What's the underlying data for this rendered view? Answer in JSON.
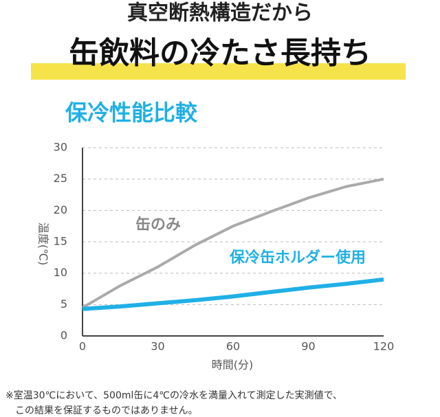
{
  "header": {
    "line1": "真空断熱構造だから",
    "line2": "缶飲料の冷たさ長持ち"
  },
  "chart_data": {
    "type": "line",
    "title": "保冷性能比較",
    "x_label": "時間(分)",
    "y_label": "温度(℃)",
    "x": [
      0,
      15,
      30,
      45,
      60,
      75,
      90,
      105,
      120
    ],
    "series": [
      {
        "name": "缶のみ",
        "color": "#aaaaaa",
        "values": [
          4.5,
          8,
          11,
          14.5,
          17.5,
          19.8,
          22,
          23.8,
          25
        ]
      },
      {
        "name": "保冷缶ホルダー使用",
        "color": "#1fb0e6",
        "values": [
          4.3,
          4.7,
          5.2,
          5.7,
          6.3,
          7,
          7.7,
          8.3,
          9
        ]
      }
    ],
    "xlim": [
      0,
      120
    ],
    "xticks": [
      0,
      30,
      60,
      90,
      120
    ],
    "ylim": [
      0,
      30
    ],
    "yticks": [
      0,
      5,
      10,
      15,
      20,
      25,
      30
    ],
    "grid": true
  },
  "footnote": [
    "※室温30℃において、500ml缶に4℃の冷水を満量入れて測定した実測値で、",
    "この結果を保証するものではありません。"
  ]
}
